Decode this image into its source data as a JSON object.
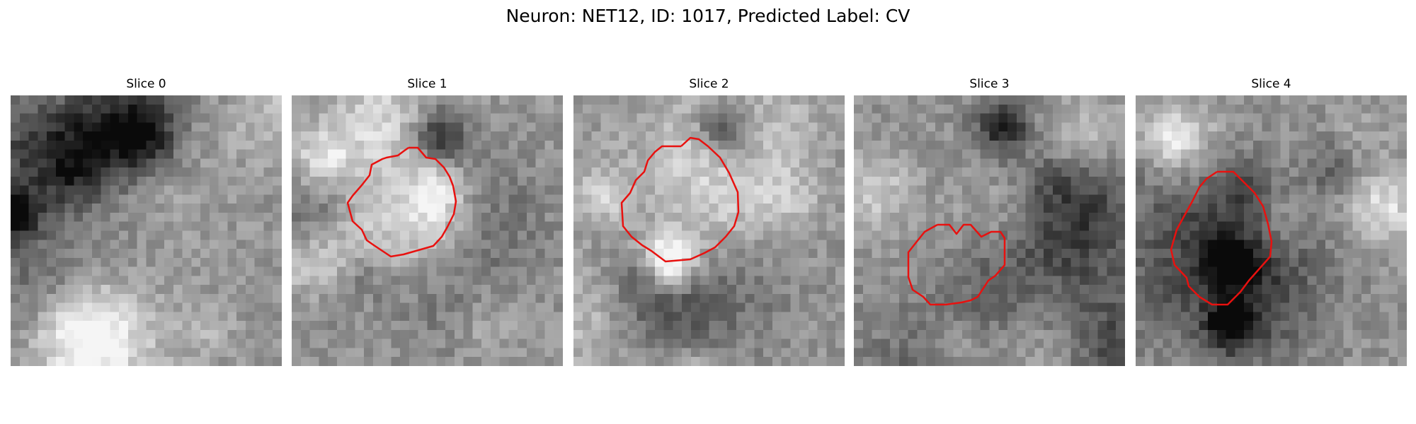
{
  "figure": {
    "title": "Neuron: NET12, ID: 1017, Predicted Label: CV",
    "contour_color": "#e8110f",
    "panels": [
      {
        "title": "Slice 0",
        "seed": 11,
        "has_contour": false
      },
      {
        "title": "Slice 1",
        "seed": 23,
        "has_contour": true
      },
      {
        "title": "Slice 2",
        "seed": 37,
        "has_contour": true
      },
      {
        "title": "Slice 3",
        "seed": 41,
        "has_contour": true
      },
      {
        "title": "Slice 4",
        "seed": 53,
        "has_contour": true
      }
    ]
  }
}
